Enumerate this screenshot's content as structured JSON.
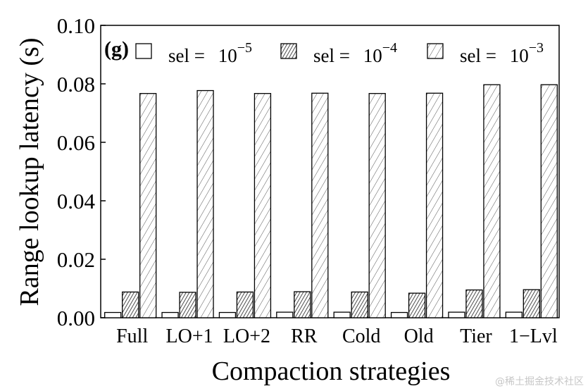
{
  "chart_data": {
    "type": "bar",
    "panel_label": "(g)",
    "xlabel": "Compaction strategies",
    "ylabel": "Range lookup latency (s)",
    "ylim": [
      0,
      0.1
    ],
    "yticks": [
      "0.00",
      "0.02",
      "0.04",
      "0.06",
      "0.08",
      "0.10"
    ],
    "grid": false,
    "legend_position": "top",
    "categories": [
      "Full",
      "LO+1",
      "LO+2",
      "RR",
      "Cold",
      "Old",
      "Tier",
      "1−Lvl"
    ],
    "series": [
      {
        "name": "sel = 10⁻⁵",
        "legend_prefix": "sel = ",
        "legend_base": "10",
        "legend_exp": "−5",
        "pattern": "none",
        "values": [
          0.0018,
          0.0018,
          0.0018,
          0.0019,
          0.0019,
          0.0018,
          0.0019,
          0.0019
        ]
      },
      {
        "name": "sel = 10⁻⁴",
        "legend_prefix": "sel = ",
        "legend_base": "10",
        "legend_exp": "−4",
        "pattern": "dense",
        "values": [
          0.0088,
          0.0087,
          0.0088,
          0.0089,
          0.0088,
          0.0084,
          0.0095,
          0.0096
        ]
      },
      {
        "name": "sel = 10⁻³",
        "legend_prefix": "sel = ",
        "legend_base": "10",
        "legend_exp": "−3",
        "pattern": "sparse",
        "values": [
          0.0767,
          0.0777,
          0.0767,
          0.0768,
          0.0767,
          0.0768,
          0.0797,
          0.0797
        ]
      }
    ]
  },
  "watermark": "@稀土掘金技术社区"
}
